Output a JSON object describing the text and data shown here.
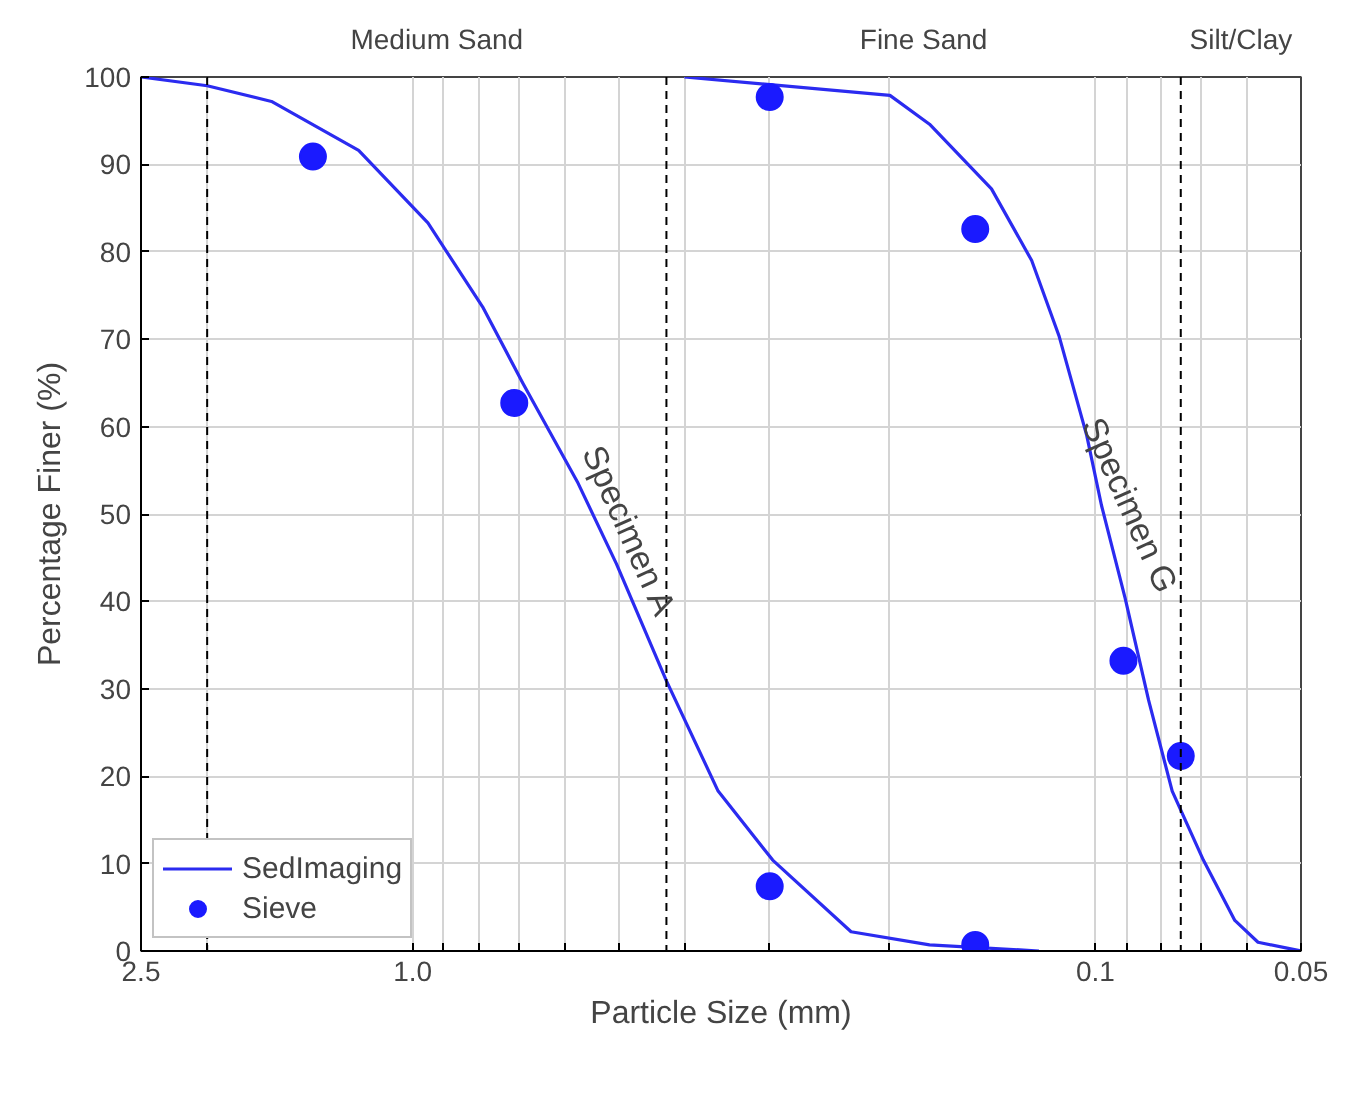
{
  "chart_data": {
    "type": "line",
    "xlabel": "Particle Size (mm)",
    "ylabel": "Percentage Finer (%)",
    "log": "x",
    "xlim": [
      2.5,
      0.05
    ],
    "ylim": [
      0,
      100
    ],
    "xticks": [
      2.5,
      {
        "value": 2,
        "label": null
      },
      {
        "value": 1,
        "label": "1.0"
      },
      {
        "value": 0.9,
        "label": null
      },
      {
        "value": 0.8,
        "label": null
      },
      {
        "value": 0.7,
        "label": null
      },
      {
        "value": 0.6,
        "label": null
      },
      {
        "value": 0.5,
        "label": null
      },
      {
        "value": 0.4,
        "label": null
      },
      {
        "value": 0.3,
        "label": null
      },
      {
        "value": 0.2,
        "label": null
      },
      0.1,
      {
        "value": 0.09,
        "label": null
      },
      {
        "value": 0.08,
        "label": null
      },
      {
        "value": 0.07,
        "label": null
      },
      {
        "value": 0.06,
        "label": null
      },
      0.05
    ],
    "yticks": [
      0,
      10,
      20,
      30,
      40,
      50,
      60,
      70,
      80,
      90,
      100
    ],
    "grid": true,
    "legend": "bottom left",
    "series": [
      {
        "name": "SedImaging",
        "color": "#2b2bf0",
        "line_style": "solid",
        "marker": "none",
        "x": [
          2.5,
          2.0,
          1.61,
          1.2,
          0.95,
          0.79,
          0.69,
          0.574,
          0.503,
          0.425,
          0.357,
          0.297,
          0.228,
          0.175,
          0.121
        ],
        "values": [
          100,
          99,
          97.2,
          91.6,
          83.3,
          73.7,
          65,
          53.7,
          44.3,
          30.9,
          18.3,
          10.4,
          2.2,
          0.7,
          0
        ]
      },
      {
        "color": "#2b2bf0",
        "line_style": "solid",
        "marker": "none",
        "x": [
          0.4,
          0.2,
          0.175,
          0.142,
          0.124,
          0.113,
          0.103,
          0.098,
          0.0905,
          0.0836,
          0.0772,
          0.0695,
          0.0625,
          0.0578,
          0.05
        ],
        "values": [
          100,
          97.9,
          94.6,
          87.2,
          79,
          70.3,
          59,
          51,
          40.4,
          28.7,
          18.3,
          10.4,
          3.5,
          1,
          0
        ]
      },
      {
        "name": "Sieve",
        "type": "scatter",
        "color": "#1a1aff",
        "marker": "circle",
        "x": [
          1.4,
          0.71,
          0.3,
          0.15,
          0.3,
          0.15,
          0.091,
          0.075
        ],
        "values": [
          90.9,
          62.7,
          97.7,
          82.6,
          7.4,
          0.7,
          33.2,
          22.3
        ]
      }
    ],
    "ref_lines": [
      {
        "axis": "x",
        "value": 2.0,
        "color": "#000000",
        "line_style": "dashed"
      },
      {
        "axis": "x",
        "value": 0.425,
        "color": "#000000",
        "line_style": "dashed"
      },
      {
        "axis": "x",
        "value": 0.075,
        "color": "#000000",
        "line_style": "dashed"
      }
    ],
    "annotations": [
      "Medium Sand",
      "Fine Sand",
      "Silt/Clay",
      {
        "text": "Specimen A",
        "x": 0.53,
        "y": 48
      },
      {
        "text": "Specimen G",
        "x": 0.098,
        "y": 51
      }
    ]
  }
}
